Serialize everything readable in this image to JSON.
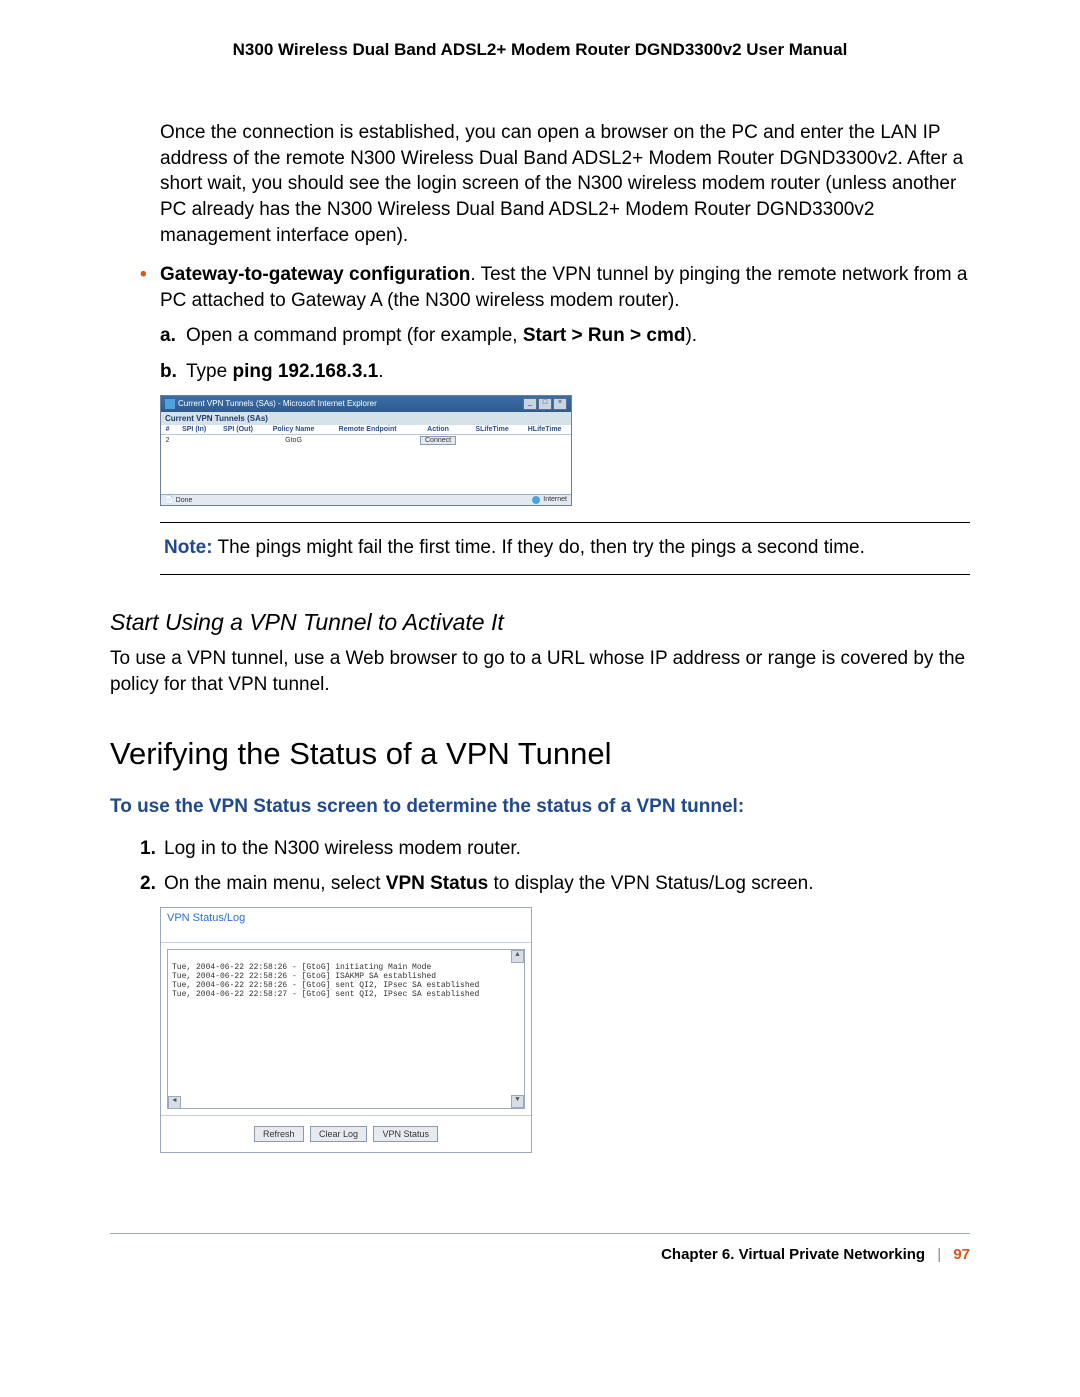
{
  "header": {
    "title": "N300 Wireless Dual Band ADSL2+ Modem Router DGND3300v2 User Manual"
  },
  "intro_para": "Once the connection is established, you can open a browser on the PC and enter the LAN IP address of the remote N300 Wireless Dual Band ADSL2+ Modem Router DGND3300v2. After a short wait, you should see the login screen of the N300 wireless modem router (unless another PC already has the N300 Wireless Dual Band ADSL2+ Modem Router DGND3300v2 management interface open).",
  "bullet": {
    "lead_bold": "Gateway-to-gateway configuration",
    "lead_rest": ". Test the VPN tunnel by pinging the remote network from a PC attached to Gateway A (the N300 wireless modem router)."
  },
  "step_a": {
    "label": "a.",
    "text_pre": "Open a command prompt (for example, ",
    "bold": "Start > Run > cmd",
    "text_post": ")."
  },
  "step_b": {
    "label": "b.",
    "text_pre": "Type ",
    "bold": "ping 192.168.3.1",
    "text_post": "."
  },
  "ie": {
    "title": "Current VPN Tunnels (SAs) - Microsoft Internet Explorer",
    "subhead": "Current VPN Tunnels (SAs)",
    "columns": [
      "#",
      "SPI (In)",
      "SPI (Out)",
      "Policy Name",
      "Remote Endpoint",
      "Action",
      "SLifeTime",
      "HLifeTime"
    ],
    "row": {
      "num": "2",
      "policy": "GtoG",
      "action": "Connect"
    },
    "status_left": "Done",
    "status_right": "Internet",
    "colors": {
      "titlebar": "#2d5a91",
      "titlebar_text": "#ffffff",
      "subhead_bg": "#d5e2ea",
      "header_text": "#2a4d8f"
    }
  },
  "note": {
    "label": "Note:",
    "text": "  The pings might fail the first time. If they do, then try the pings a second time."
  },
  "h3": "Start Using a VPN Tunnel to Activate It",
  "h3_para": "To use a VPN tunnel, use a Web browser to go to a URL whose IP address or range is covered by the policy for that VPN tunnel.",
  "h2": "Verifying the Status of a VPN Tunnel",
  "blue_lead": "To use the VPN Status screen to determine the status of a VPN tunnel:",
  "step1": {
    "label": "1.",
    "text": "Log in to the N300 wireless modem router."
  },
  "step2": {
    "label": "2.",
    "pre": "On the main menu, select ",
    "bold": "VPN Status",
    "post": " to display the VPN Status/Log screen."
  },
  "vpn": {
    "title": "VPN Status/Log",
    "log_lines": [
      "Tue, 2004-06-22 22:58:26 - [GtoG] initiating Main Mode",
      "Tue, 2004-06-22 22:58:26 - [GtoG] ISAKMP SA established",
      "Tue, 2004-06-22 22:58:26 - [GtoG] sent QI2, IPsec SA established",
      "Tue, 2004-06-22 22:58:27 - [GtoG] sent QI2, IPsec SA established"
    ],
    "buttons": {
      "refresh": "Refresh",
      "clear": "Clear Log",
      "status": "VPN Status"
    },
    "colors": {
      "title": "#2a6fd6",
      "border": "#9aa9bf",
      "btn_bg": "#e7ebf1"
    }
  },
  "footer": {
    "chapter": "Chapter 6.  Virtual Private Networking",
    "sep": "|",
    "page": "97"
  },
  "palette": {
    "accent_orange": "#d9541e",
    "accent_blue": "#204a8f",
    "rule": "#9aa9bf"
  }
}
